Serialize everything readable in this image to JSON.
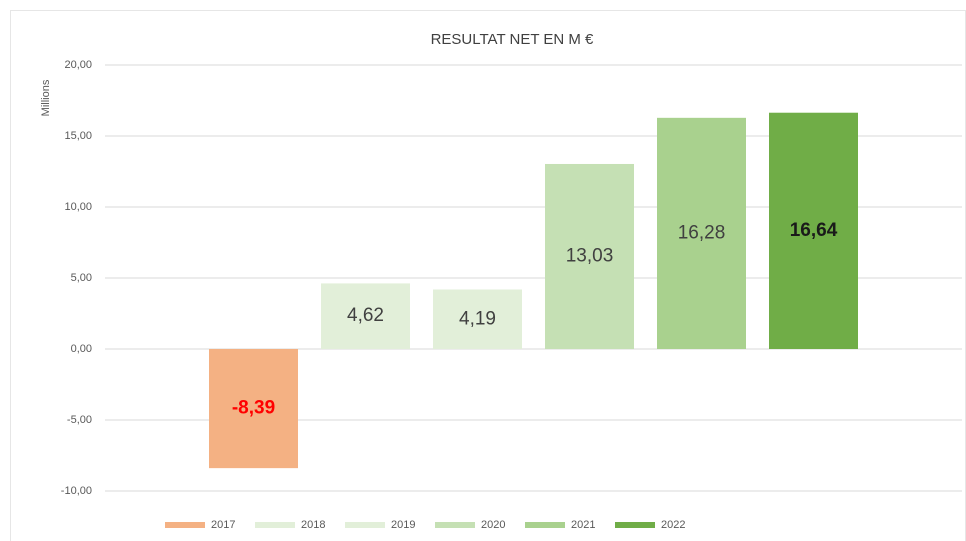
{
  "chart_data": {
    "type": "bar",
    "title": "RESULTAT NET EN  M €",
    "y_axis_label": "Millions",
    "categories": [
      null
    ],
    "series": [
      {
        "name": "2017",
        "color": "#f4b183",
        "values": [
          -8.39
        ],
        "value_labels": [
          "-8,39"
        ],
        "label_color": "#ff0000",
        "label_bold": true
      },
      {
        "name": "2018",
        "color": "#e2efd9",
        "values": [
          4.62
        ],
        "value_labels": [
          "4,62"
        ],
        "label_color": "#404040"
      },
      {
        "name": "2019",
        "color": "#e2efd9",
        "values": [
          4.19
        ],
        "value_labels": [
          "4,19"
        ],
        "label_color": "#404040"
      },
      {
        "name": "2020",
        "color": "#c5e0b4",
        "values": [
          13.03
        ],
        "value_labels": [
          "13,03"
        ],
        "label_color": "#404040"
      },
      {
        "name": "2021",
        "color": "#a9d18e",
        "values": [
          16.28
        ],
        "value_labels": [
          "16,28"
        ],
        "label_color": "#404040"
      },
      {
        "name": "2022",
        "color": "#70ad47",
        "values": [
          16.64
        ],
        "value_labels": [
          "16,64"
        ],
        "label_color": "#1a1a1a",
        "label_bold": true
      }
    ],
    "ylim": [
      -10,
      20
    ],
    "yticks": [
      {
        "value": -10,
        "label": "-10,00"
      },
      {
        "value": -5,
        "label": "-5,00"
      },
      {
        "value": 0,
        "label": "0,00"
      },
      {
        "value": 5,
        "label": "5,00"
      },
      {
        "value": 10,
        "label": "10,00"
      },
      {
        "value": 15,
        "label": "15,00"
      },
      {
        "value": 20,
        "label": "20,00"
      }
    ],
    "grid": true,
    "legend": "bottom"
  }
}
